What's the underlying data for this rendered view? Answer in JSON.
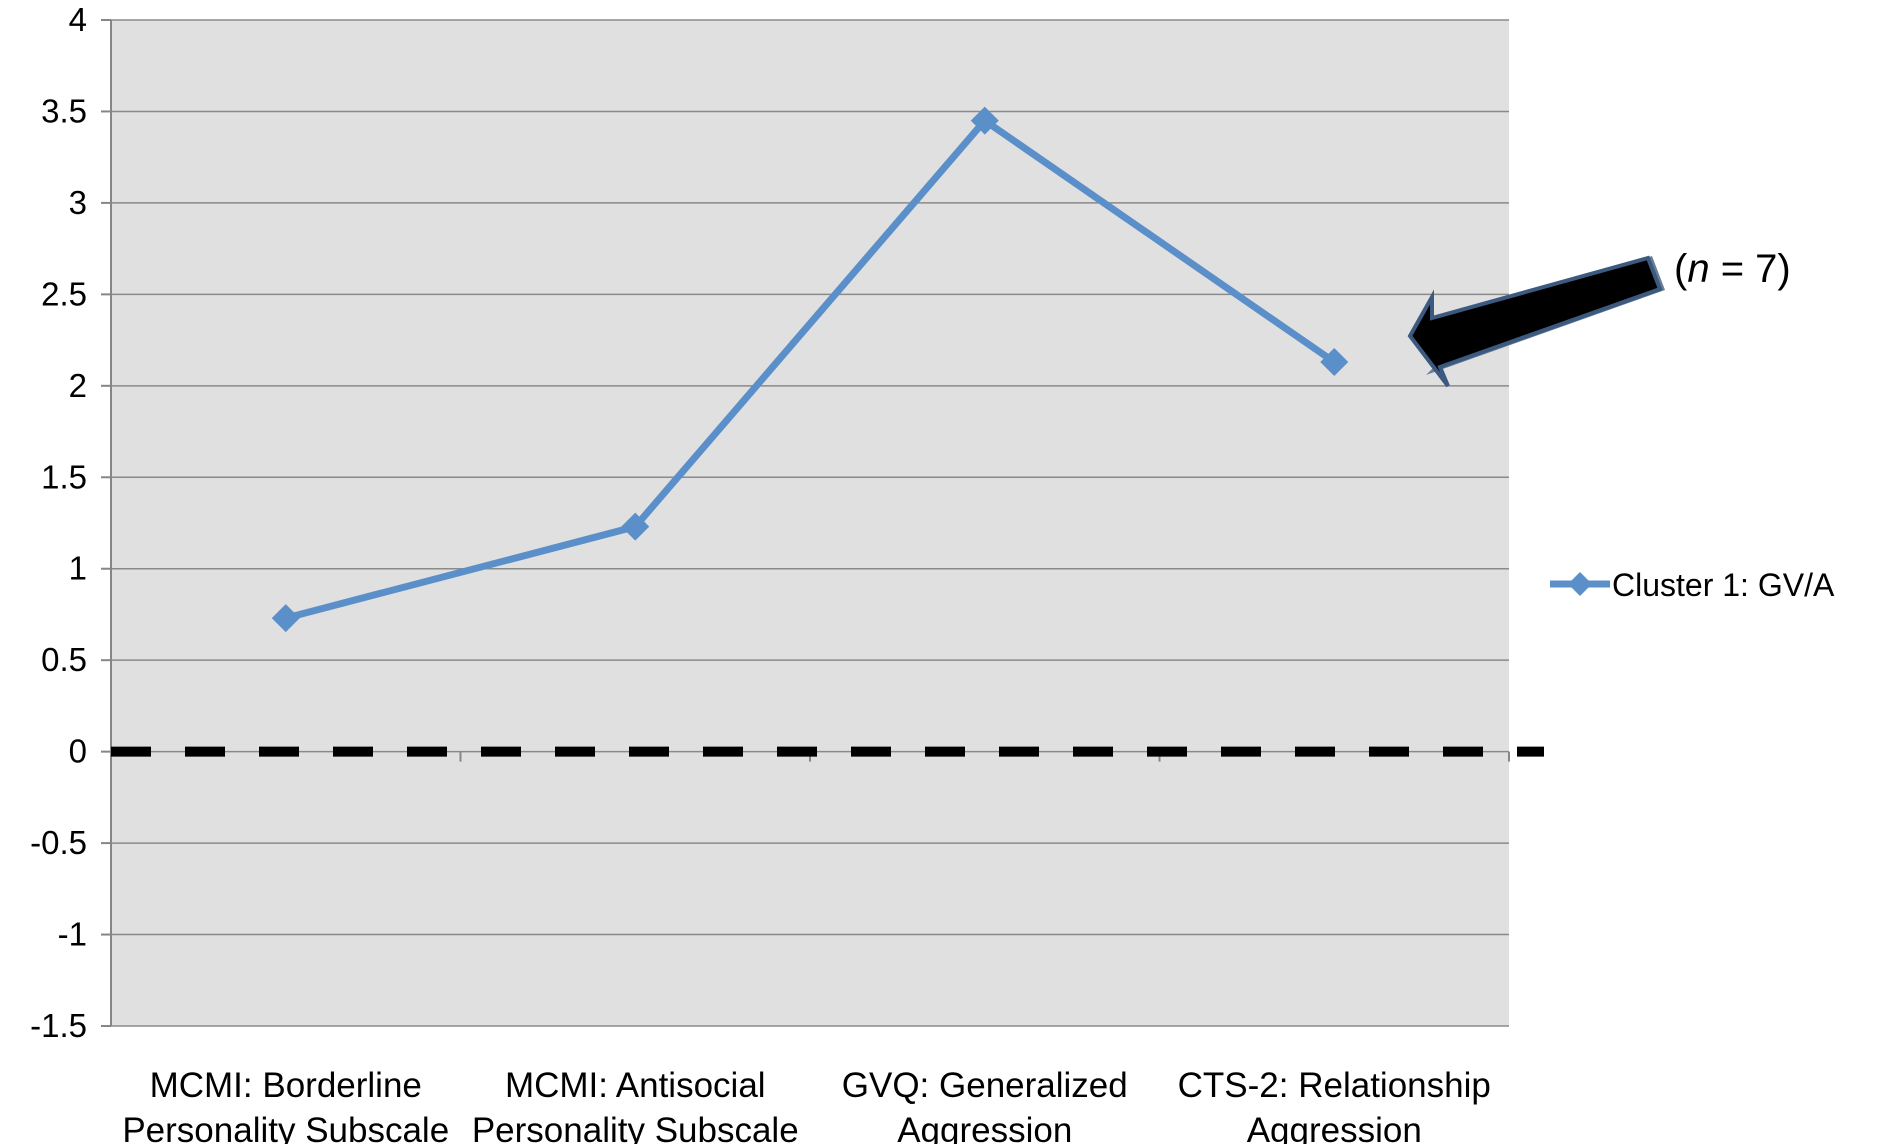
{
  "chart_data": {
    "type": "line",
    "categories": [
      [
        "MCMI: Borderline",
        "Personality Subscale"
      ],
      [
        "MCMI:   Antisocial",
        "Personality Subscale"
      ],
      [
        "GVQ: Generalized",
        "Aggression"
      ],
      [
        "CTS-2: Relationship",
        "Aggression"
      ]
    ],
    "series": [
      {
        "name": "Cluster 1: GV/A",
        "values": [
          0.73,
          1.23,
          3.45,
          2.13
        ],
        "color": "#5b8fc9"
      }
    ],
    "ylim": [
      -1.5,
      4
    ],
    "ytick_step": 0.5,
    "ytick_labels": [
      "-1.5",
      "-1",
      "-0.5",
      "0",
      "0.5",
      "1",
      "1.5",
      "2",
      "2.5",
      "3",
      "3.5",
      "4"
    ],
    "reference_line": {
      "y": 0,
      "style": "dashed",
      "color": "#000000"
    },
    "plot_background": "#e0e0e0",
    "grid": true,
    "legend": "right",
    "annotation": {
      "prefix": "(",
      "italic": "n",
      "suffix": " = 7)",
      "arrow": "pointing to CTS-2: Relationship Aggression point"
    },
    "title": "",
    "xlabel": "",
    "ylabel": ""
  }
}
